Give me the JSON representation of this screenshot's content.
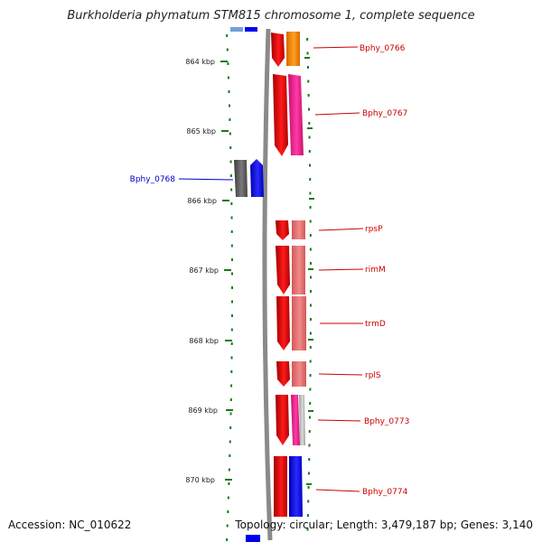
{
  "title": "Burkholderia phymatum STM815 chromosome 1, complete sequence",
  "accession_text": "Accession: NC_010622",
  "topology_text": "Topology: circular; Length: 3,479,187 bp; Genes: 3,140",
  "axis": {
    "ticks": [
      "864 kbp",
      "865 kbp",
      "866 kbp",
      "867 kbp",
      "868 kbp",
      "869 kbp",
      "870 kbp"
    ]
  },
  "colors": {
    "label_right": "#cc0000",
    "label_left": "#0000cc",
    "axis_tick": "#1a7a1a",
    "backbone": "#8a8a8a"
  },
  "genes": [
    {
      "name": "Bphy_0766",
      "side": "right",
      "colors": [
        "#ee0000",
        "#ff8c00"
      ]
    },
    {
      "name": "Bphy_0767",
      "side": "right",
      "colors": [
        "#ee0000",
        "#ff1493"
      ]
    },
    {
      "name": "Bphy_0768",
      "side": "left",
      "colors": [
        "#555555",
        "#0000ff"
      ]
    },
    {
      "name": "rpsP",
      "side": "right",
      "colors": [
        "#ee0000",
        "#e96a6a"
      ]
    },
    {
      "name": "rimM",
      "side": "right",
      "colors": [
        "#ee0000",
        "#e96a6a"
      ]
    },
    {
      "name": "trmD",
      "side": "right",
      "colors": [
        "#ee0000",
        "#e96a6a"
      ]
    },
    {
      "name": "rplS",
      "side": "right",
      "colors": [
        "#ee0000",
        "#e96a6a"
      ]
    },
    {
      "name": "Bphy_0773",
      "side": "right",
      "colors": [
        "#ee0000",
        "#ff1493",
        "#bbbbbb"
      ]
    },
    {
      "name": "Bphy_0774",
      "side": "right",
      "colors": [
        "#ee0000",
        "#0000ff"
      ]
    }
  ]
}
